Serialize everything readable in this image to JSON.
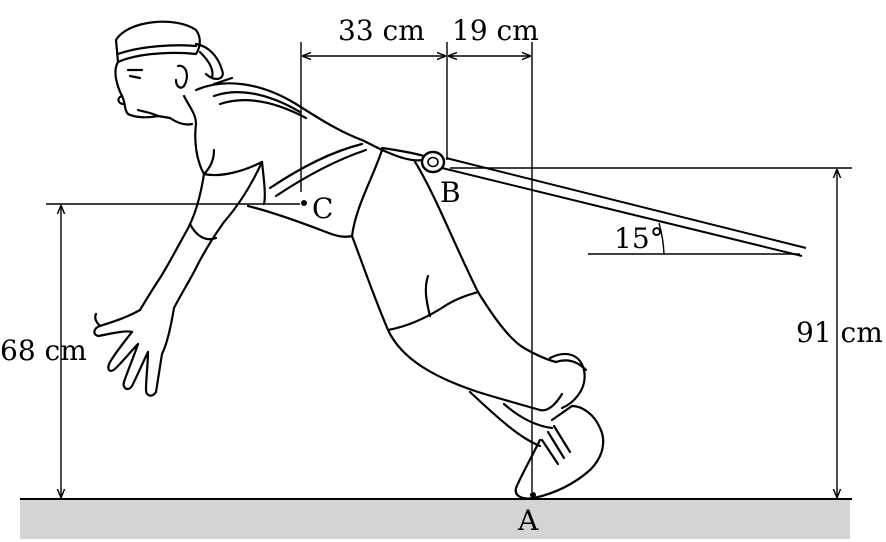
{
  "labels": {
    "dim_horizontal_left": "33 cm",
    "dim_horizontal_right": "19 cm",
    "dim_height_c": "68 cm",
    "dim_height_b": "91 cm",
    "angle": "15°",
    "point_a": "A",
    "point_b": "B",
    "point_c": "C"
  },
  "colors": {
    "ground": "#d4d4d4",
    "ink": "#000000"
  }
}
